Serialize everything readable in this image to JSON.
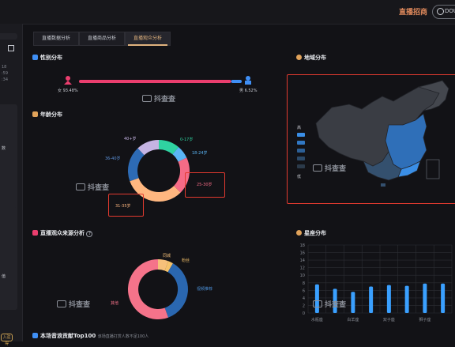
{
  "topbar": {
    "brand": "直播招商",
    "search_text": "DOU"
  },
  "sidebar": {
    "numbers": [
      "18",
      ":59",
      ":34"
    ],
    "labels": [
      "数",
      "值"
    ],
    "badge": "入驻得"
  },
  "tabs": [
    {
      "label": "直播数据分析",
      "active": false
    },
    {
      "label": "直播商品分析",
      "active": false
    },
    {
      "label": "直播观众分析",
      "active": true
    }
  ],
  "watermark": "抖查查",
  "gender": {
    "title": "性别分布",
    "female_label": "女 93.48%",
    "male_label": "男 6.52%",
    "female_pct": 93.48,
    "male_pct": 6.52,
    "colors": {
      "female": "#ea3e6e",
      "male": "#3f8ff5"
    }
  },
  "age": {
    "title": "年龄分布",
    "slices": [
      {
        "label": "0-17岁",
        "color": "#2fd3a1"
      },
      {
        "label": "18-24岁",
        "color": "#5ab5f6"
      },
      {
        "label": "25-30岁",
        "color": "#f56b86"
      },
      {
        "label": "31-35岁",
        "color": "#ffb780"
      },
      {
        "label": "36-40岁",
        "color": "#2d6bb5"
      },
      {
        "label": "40+岁",
        "color": "#c5b4e3"
      }
    ]
  },
  "source": {
    "title": "直播观众来源分析",
    "slices": [
      {
        "label": "同城",
        "color": "#f6c07a"
      },
      {
        "label": "粉丝",
        "color": "#f5c26b"
      },
      {
        "label": "视频推荐",
        "color": "#2a67b0"
      },
      {
        "label": "其他",
        "color": "#f5738a"
      }
    ]
  },
  "region": {
    "title": "地域分布",
    "legend_high": "高",
    "legend_low": "低",
    "legend_colors": [
      "#3a8ee6",
      "#3178c4",
      "#2c5f96",
      "#2b4968",
      "#2b3a4a",
      "#2a3340"
    ]
  },
  "top100": {
    "title": "本场音浪贡献Top100",
    "note": "该场直播打赏人数不足100人"
  },
  "chart_data": {
    "type": "bar",
    "title": "星座分布",
    "yticks": [
      0,
      2,
      4,
      6,
      8,
      10,
      12,
      14,
      16,
      18
    ],
    "ylim": [
      0,
      18
    ],
    "categories": [
      "水瓶座",
      "",
      "白羊座",
      "",
      "双子座",
      "",
      "狮子座",
      ""
    ],
    "values": [
      7.6,
      6.4,
      5.6,
      7.0,
      7.4,
      7.2,
      7.8,
      7.8
    ],
    "bar_color": "#3aa0ff",
    "grid": true
  }
}
